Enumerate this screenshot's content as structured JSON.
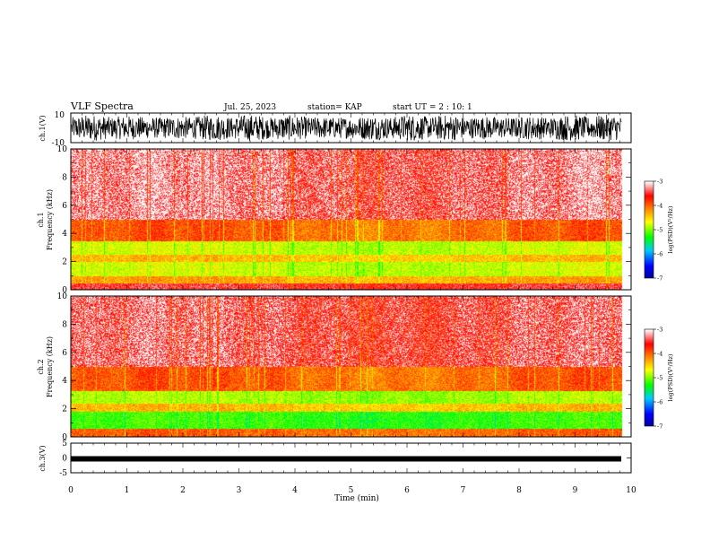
{
  "header": {
    "title": "VLF Spectra",
    "date": "Jul. 25, 2023",
    "station": "station= KAP",
    "start": "start UT =  2 : 10: 1"
  },
  "chart_data": [
    {
      "type": "line",
      "panel": "ch1-waveform",
      "ylabel": "ch.1(V)",
      "ylim": [
        -10,
        10
      ],
      "yticks": [
        "10",
        "-10"
      ],
      "xlim": [
        0,
        10
      ],
      "description_values": {
        "envelope_min": -9,
        "envelope_max": 9
      }
    },
    {
      "type": "heatmap",
      "panel": "ch1-spectrogram",
      "ylabel": "ch.1\nFrequency (kHz)",
      "ylim": [
        0,
        10
      ],
      "yticks": [
        "0",
        "2",
        "4",
        "6",
        "8",
        "10"
      ],
      "xlim": [
        0,
        10
      ],
      "data_end_min": 9.83,
      "bands": [
        {
          "from": 0.0,
          "to": 0.5,
          "level": -3.5
        },
        {
          "from": 0.5,
          "to": 1.0,
          "level": -4.3
        },
        {
          "from": 1.0,
          "to": 2.0,
          "level": -4.8
        },
        {
          "from": 2.0,
          "to": 2.5,
          "level": -4.4
        },
        {
          "from": 2.5,
          "to": 3.5,
          "level": -4.8
        },
        {
          "from": 3.5,
          "to": 5.0,
          "level": -4.0
        },
        {
          "from": 5.0,
          "to": 10.0,
          "level": -3.3
        }
      ],
      "colorbar": {
        "label": "log(PSD)(V²/Hz)",
        "min": -7,
        "max": -3,
        "ticks": [
          "-3",
          "-4",
          "-5",
          "-6",
          "-7"
        ]
      }
    },
    {
      "type": "heatmap",
      "panel": "ch2-spectrogram",
      "ylabel": "ch.2\nFrequency (kHz)",
      "ylim": [
        0,
        10
      ],
      "yticks": [
        "0",
        "2",
        "4",
        "6",
        "8",
        "10"
      ],
      "xlim": [
        0,
        10
      ],
      "data_end_min": 9.83,
      "bands": [
        {
          "from": 0.0,
          "to": 0.6,
          "level": -4.0
        },
        {
          "from": 0.6,
          "to": 1.8,
          "level": -5.2
        },
        {
          "from": 1.8,
          "to": 2.4,
          "level": -4.4
        },
        {
          "from": 2.4,
          "to": 3.3,
          "level": -4.9
        },
        {
          "from": 3.3,
          "to": 5.0,
          "level": -4.0
        },
        {
          "from": 5.0,
          "to": 10.0,
          "level": -3.4
        }
      ],
      "colorbar": {
        "label": "log(PSD)(V²/Hz)",
        "min": -7,
        "max": -3,
        "ticks": [
          "-3",
          "-4",
          "-5",
          "-6",
          "-7"
        ]
      }
    },
    {
      "type": "line",
      "panel": "ch3-waveform",
      "ylabel": "ch.3(V)",
      "ylim": [
        -5,
        5
      ],
      "yticks": [
        "5",
        "0",
        "-5"
      ],
      "xlim": [
        0,
        10
      ],
      "description_values": {
        "level": -0.3
      }
    }
  ],
  "xaxis": {
    "label": "Time (min)",
    "ticks": [
      "0",
      "1",
      "2",
      "3",
      "4",
      "5",
      "6",
      "7",
      "8",
      "9",
      "10"
    ]
  },
  "colors": {
    "palette": [
      "#0000ff",
      "#00c8ff",
      "#00ff00",
      "#ffff00",
      "#ff8000",
      "#ff0000",
      "#ffffff"
    ]
  }
}
